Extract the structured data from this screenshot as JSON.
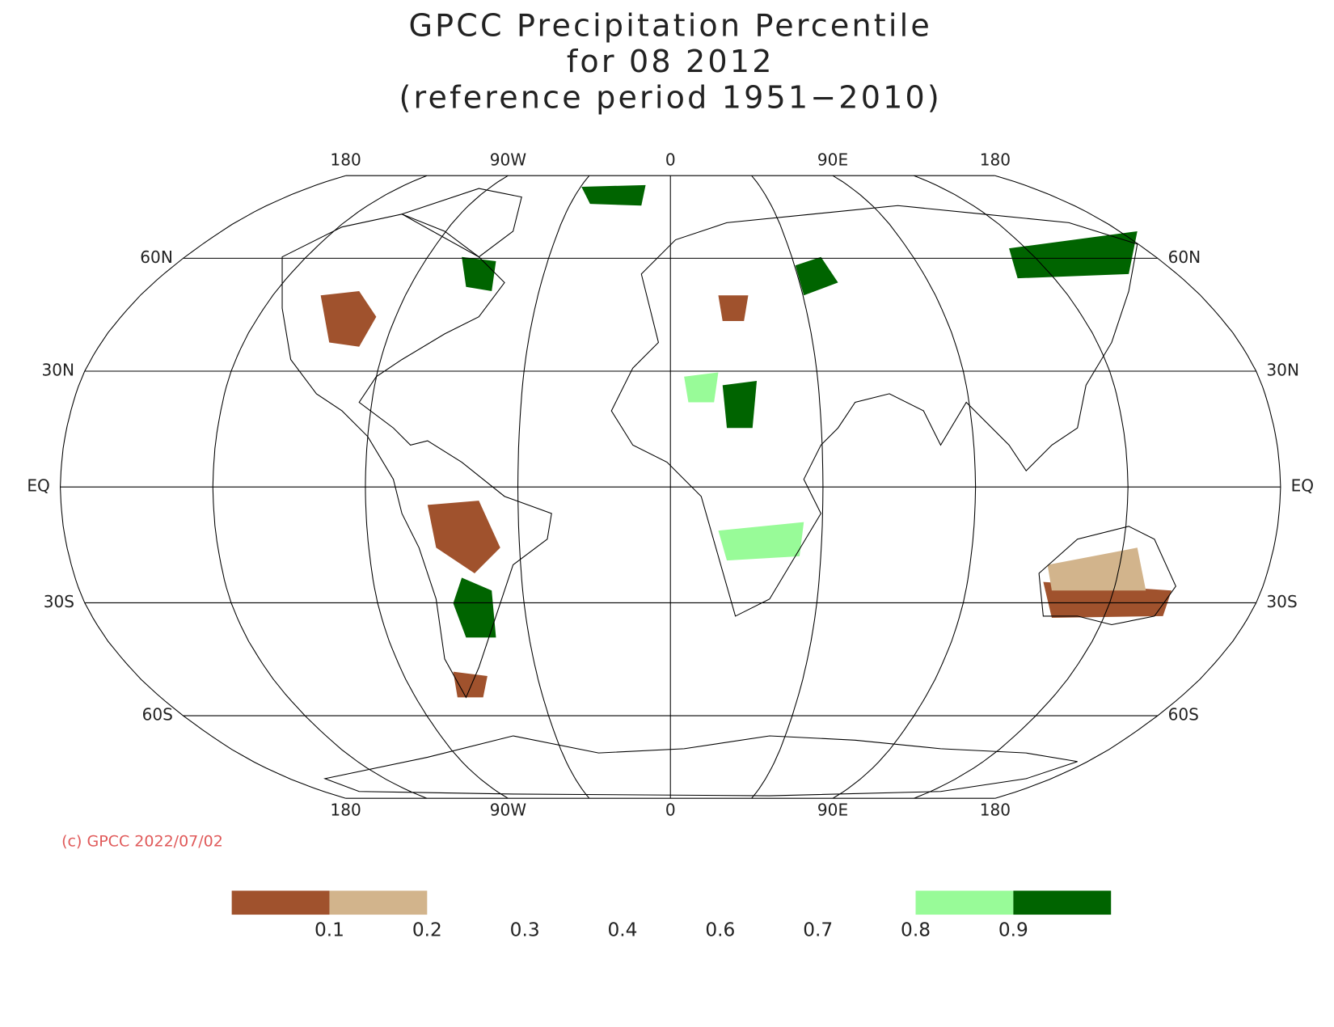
{
  "title_lines": [
    "GPCC Precipitation Percentile",
    "for 08 2012",
    "(reference period 1951−2010)"
  ],
  "lon_labels": [
    "180",
    "90W",
    "0",
    "90E",
    "180"
  ],
  "lat_labels": [
    "60N",
    "30N",
    "EQ",
    "30S",
    "60S"
  ],
  "copyright": "(c) GPCC 2022/07/02",
  "colorbar": {
    "colors": [
      "#a0522d",
      "#d2b48c",
      null,
      null,
      null,
      null,
      null,
      "#98fb98",
      "#006400"
    ],
    "labels": [
      "0.1",
      "0.2",
      "0.3",
      "0.4",
      "0.6",
      "0.7",
      "0.8",
      "0.9"
    ]
  }
}
